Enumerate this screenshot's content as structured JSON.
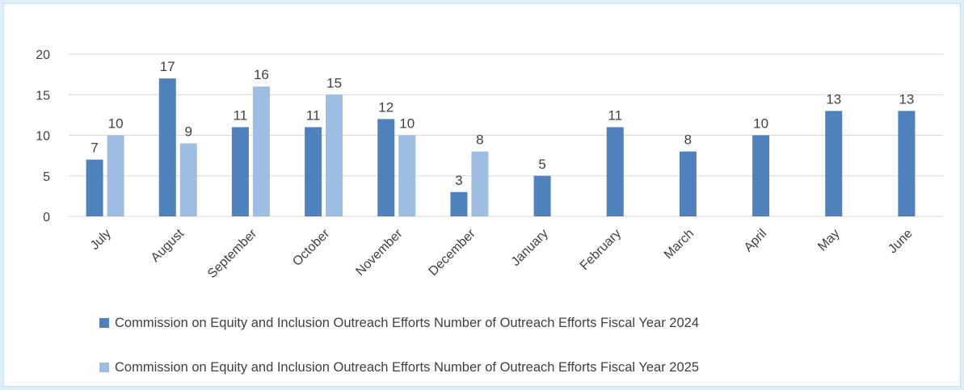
{
  "chart_data": {
    "type": "bar",
    "categories": [
      "July",
      "August",
      "September",
      "October",
      "November",
      "December",
      "January",
      "February",
      "March",
      "April",
      "May",
      "June"
    ],
    "series": [
      {
        "name": "Commission on Equity and Inclusion Outreach Efforts Number of Outreach Efforts Fiscal Year 2024",
        "color": "#4f81bd",
        "values": [
          7,
          17,
          11,
          11,
          12,
          3,
          5,
          11,
          8,
          10,
          13,
          13
        ]
      },
      {
        "name": "Commission on Equity and Inclusion Outreach Efforts Number of Outreach Efforts Fiscal Year 2025",
        "color": "#9dbde3",
        "values": [
          10,
          9,
          16,
          15,
          10,
          8,
          null,
          null,
          null,
          null,
          null,
          null
        ]
      }
    ],
    "yticks": [
      "0",
      "5",
      "10",
      "15",
      "20"
    ],
    "ylim": [
      0,
      20
    ],
    "grid": true,
    "legend_position": "bottom",
    "gridline_color": "#d9d9d9"
  }
}
